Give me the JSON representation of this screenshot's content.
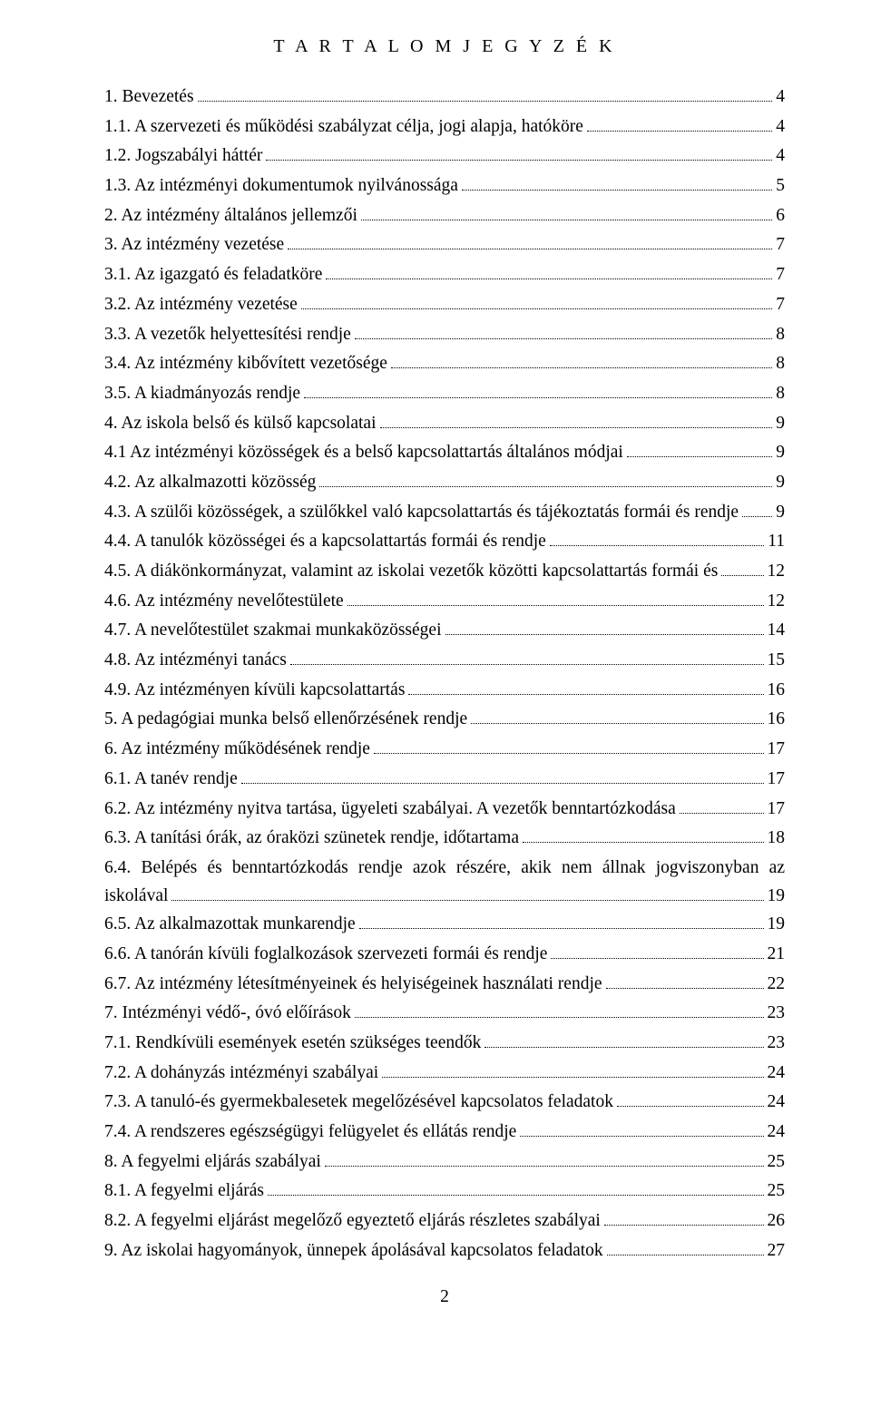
{
  "title": "T A R T A L O M J E G Y Z É K",
  "page_number": "2",
  "entries": [
    {
      "label": "1. Bevezetés",
      "page": "4"
    },
    {
      "label": "1.1. A szervezeti és működési szabályzat célja, jogi alapja, hatóköre",
      "page": "4"
    },
    {
      "label": "1.2. Jogszabályi háttér",
      "page": "4"
    },
    {
      "label": "1.3. Az intézményi dokumentumok nyilvánossága",
      "page": "5"
    },
    {
      "label": "2. Az intézmény általános jellemzői",
      "page": "6"
    },
    {
      "label": "3. Az intézmény vezetése",
      "page": "7"
    },
    {
      "label": "3.1. Az igazgató és feladatköre",
      "page": "7"
    },
    {
      "label": "3.2. Az intézmény vezetése",
      "page": "7"
    },
    {
      "label": "3.3. A vezetők helyettesítési rendje",
      "page": "8"
    },
    {
      "label": "3.4. Az intézmény kibővített vezetősége",
      "page": "8"
    },
    {
      "label": "3.5. A kiadmányozás rendje",
      "page": "8"
    },
    {
      "label": "4. Az iskola belső és külső kapcsolatai",
      "page": "9"
    },
    {
      "label": "4.1 Az intézményi közösségek és a belső kapcsolattartás általános módjai",
      "page": "9"
    },
    {
      "label": "4.2. Az alkalmazotti közösség",
      "page": "9"
    },
    {
      "label": "4.3. A szülői közösségek, a szülőkkel való kapcsolattartás és tájékoztatás formái és rendje",
      "page": "9"
    },
    {
      "label": "4.4. A tanulók közösségei és a kapcsolattartás formái és rendje",
      "page": "11"
    },
    {
      "label": "4.5. A diákönkormányzat, valamint az iskolai vezetők közötti kapcsolattartás formái és",
      "page": "12"
    },
    {
      "label": "4.6. Az intézmény nevelőtestülete",
      "page": "12"
    },
    {
      "label": "4.7. A nevelőtestület szakmai munkaközösségei",
      "page": "14"
    },
    {
      "label": "4.8. Az intézményi tanács",
      "page": "15"
    },
    {
      "label": "4.9. Az intézményen kívüli kapcsolattartás",
      "page": "16"
    },
    {
      "label": "5. A pedagógiai munka belső ellenőrzésének rendje",
      "page": "16"
    },
    {
      "label": "6. Az intézmény működésének rendje",
      "page": "17"
    },
    {
      "label": "6.1. A tanév rendje",
      "page": "17"
    },
    {
      "label": "6.2. Az intézmény nyitva tartása, ügyeleti szabályai. A vezetők benntartózkodása",
      "page": "17"
    },
    {
      "label": "6.3. A tanítási órák, az óraközi szünetek rendje, időtartama",
      "page": "18"
    },
    {
      "label_pre": "6.4.  Belépés  és  benntartózkodás  rendje  azok  részére,  akik  nem  állnak  jogviszonyban  az",
      "label_last": "iskolával",
      "page": "19",
      "wrap": true
    },
    {
      "label": "6.5. Az alkalmazottak munkarendje",
      "page": "19"
    },
    {
      "label": "6.6. A tanórán kívüli foglalkozások szervezeti formái és rendje",
      "page": "21"
    },
    {
      "label": "6.7. Az intézmény létesítményeinek és helyiségeinek használati rendje",
      "page": "22"
    },
    {
      "label": "7. Intézményi védő-, óvó előírások",
      "page": "23"
    },
    {
      "label": "7.1. Rendkívüli események esetén szükséges teendők",
      "page": "23"
    },
    {
      "label": "7.2. A dohányzás intézményi szabályai",
      "page": "24"
    },
    {
      "label": "7.3. A tanuló-és gyermekbalesetek megelőzésével kapcsolatos feladatok",
      "page": "24"
    },
    {
      "label": "7.4. A rendszeres egészségügyi felügyelet és ellátás rendje",
      "page": "24"
    },
    {
      "label": "8. A fegyelmi eljárás szabályai",
      "page": "25"
    },
    {
      "label": "8.1. A fegyelmi eljárás",
      "page": "25"
    },
    {
      "label": "8.2. A fegyelmi eljárást megelőző egyeztető eljárás részletes szabályai",
      "page": "26"
    },
    {
      "label": "9. Az iskolai hagyományok, ünnepek ápolásával kapcsolatos feladatok",
      "page": "27"
    }
  ]
}
